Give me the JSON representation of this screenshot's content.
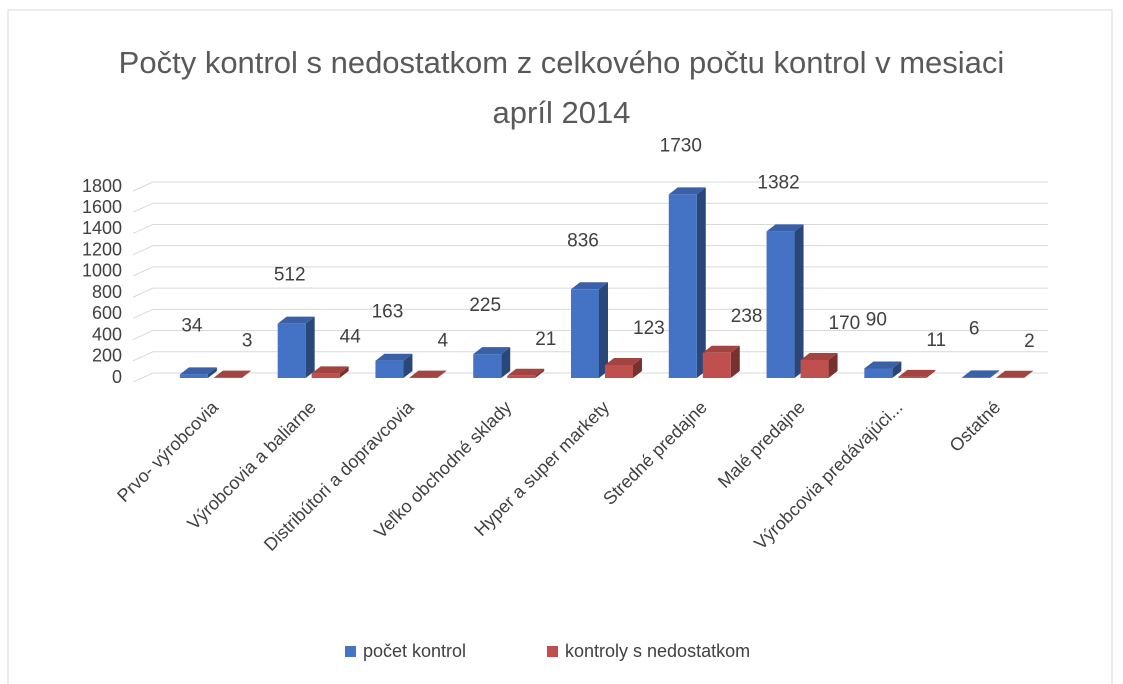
{
  "chart_data": {
    "type": "bar3d",
    "title": "Počty kontrol s nedostatkom z celkového počtu kontrol v mesiaci apríl 2014",
    "categories": [
      "Prvo- výrobcovia",
      "Výrobcovia a baliarne",
      "Distribútori a dopravcovia",
      "Veľko obchodné sklady",
      "Hyper a super markety",
      "Stredné predajne",
      "Malé  predajne",
      "Výrobcovia predávajúci...",
      "Ostatné"
    ],
    "series": [
      {
        "name": "počet kontrol",
        "color": "#4472c4",
        "values": [
          34,
          512,
          163,
          225,
          836,
          1730,
          1382,
          90,
          6
        ]
      },
      {
        "name": "kontroly s nedostatkom",
        "color": "#c0504d",
        "values": [
          3,
          44,
          4,
          21,
          123,
          238,
          170,
          11,
          2
        ]
      }
    ],
    "ylim": [
      0,
      1800
    ],
    "yticks": [
      0,
      200,
      400,
      600,
      800,
      1000,
      1200,
      1400,
      1600,
      1800
    ],
    "grid": true,
    "legend": "bottom"
  }
}
